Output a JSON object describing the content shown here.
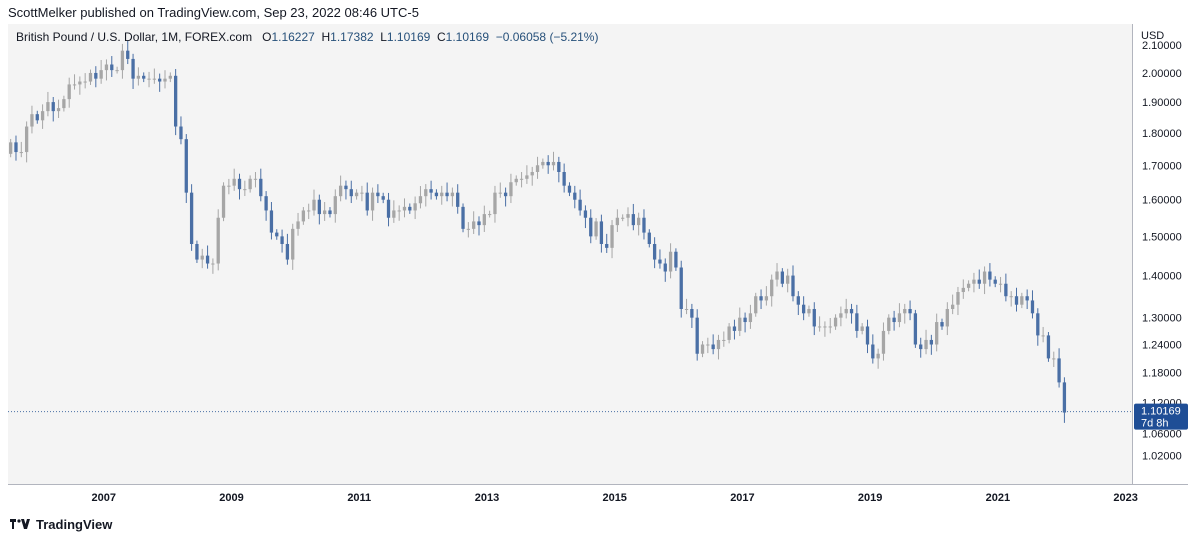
{
  "publisher": "ScottMelker published on TradingView.com, Sep 23, 2022 08:46 UTC-5",
  "legend": {
    "symbol": "British Pound / U.S. Dollar, 1M, FOREX.com",
    "open_label": "O",
    "open": "1.16227",
    "high_label": "H",
    "high": "1.17382",
    "low_label": "L",
    "low": "1.10169",
    "close_label": "C",
    "close": "1.10169",
    "change": "−0.06058 (−5.21%)"
  },
  "price_axis": {
    "currency": "USD",
    "last_price": "1.10169",
    "countdown": "7d 8h"
  },
  "footer": {
    "brand": "TradingView"
  },
  "colors": {
    "up": "#a6a6a6",
    "down": "#4a6fa5",
    "last_badge": "#1f4e96"
  },
  "chart_data": {
    "type": "candlestick",
    "title": "British Pound / U.S. Dollar, 1M, FOREX.com",
    "scale": "log",
    "ylim": [
      0.97,
      2.18
    ],
    "y_ticks": [
      2.1,
      2.0,
      1.9,
      1.8,
      1.7,
      1.6,
      1.5,
      1.4,
      1.3,
      1.24,
      1.18,
      1.12,
      1.06,
      1.02
    ],
    "x_range": [
      2006.0,
      2023.6
    ],
    "x_tick_labels": [
      "2007",
      "2009",
      "2011",
      "2013",
      "2015",
      "2017",
      "2019",
      "2021",
      "2023"
    ],
    "x_tick_values": [
      2007,
      2009,
      2011,
      2013,
      2015,
      2017,
      2019,
      2021,
      2023
    ],
    "last_close": 1.10169,
    "start": "2006-01",
    "closes": [
      1.77,
      1.74,
      1.74,
      1.82,
      1.86,
      1.84,
      1.87,
      1.9,
      1.87,
      1.88,
      1.91,
      1.96,
      1.96,
      1.97,
      1.97,
      2.0,
      1.98,
      2.01,
      2.03,
      2.01,
      2.01,
      2.08,
      2.05,
      1.98,
      1.99,
      1.98,
      1.98,
      1.98,
      1.97,
      1.98,
      1.99,
      1.82,
      1.78,
      1.62,
      1.48,
      1.44,
      1.45,
      1.43,
      1.43,
      1.55,
      1.64,
      1.64,
      1.66,
      1.63,
      1.63,
      1.66,
      1.66,
      1.61,
      1.57,
      1.51,
      1.5,
      1.48,
      1.44,
      1.52,
      1.54,
      1.57,
      1.57,
      1.6,
      1.56,
      1.57,
      1.56,
      1.61,
      1.64,
      1.63,
      1.61,
      1.62,
      1.62,
      1.57,
      1.62,
      1.61,
      1.6,
      1.55,
      1.57,
      1.57,
      1.58,
      1.57,
      1.59,
      1.61,
      1.63,
      1.62,
      1.61,
      1.62,
      1.61,
      1.62,
      1.58,
      1.52,
      1.52,
      1.54,
      1.53,
      1.56,
      1.56,
      1.62,
      1.62,
      1.61,
      1.65,
      1.66,
      1.66,
      1.67,
      1.68,
      1.7,
      1.71,
      1.7,
      1.71,
      1.68,
      1.64,
      1.62,
      1.6,
      1.57,
      1.55,
      1.5,
      1.54,
      1.48,
      1.47,
      1.53,
      1.55,
      1.55,
      1.56,
      1.53,
      1.55,
      1.51,
      1.48,
      1.44,
      1.43,
      1.41,
      1.46,
      1.42,
      1.32,
      1.32,
      1.3,
      1.22,
      1.24,
      1.24,
      1.23,
      1.25,
      1.25,
      1.28,
      1.27,
      1.3,
      1.29,
      1.31,
      1.35,
      1.34,
      1.35,
      1.39,
      1.41,
      1.38,
      1.4,
      1.35,
      1.33,
      1.31,
      1.32,
      1.28,
      1.28,
      1.28,
      1.28,
      1.3,
      1.31,
      1.32,
      1.31,
      1.27,
      1.28,
      1.24,
      1.21,
      1.22,
      1.27,
      1.3,
      1.29,
      1.31,
      1.32,
      1.31,
      1.24,
      1.23,
      1.25,
      1.24,
      1.29,
      1.28,
      1.32,
      1.33,
      1.36,
      1.37,
      1.38,
      1.39,
      1.38,
      1.41,
      1.39,
      1.38,
      1.38,
      1.35,
      1.35,
      1.33,
      1.35,
      1.34,
      1.31,
      1.26,
      1.26,
      1.21,
      1.21,
      1.16,
      1.1
    ]
  }
}
